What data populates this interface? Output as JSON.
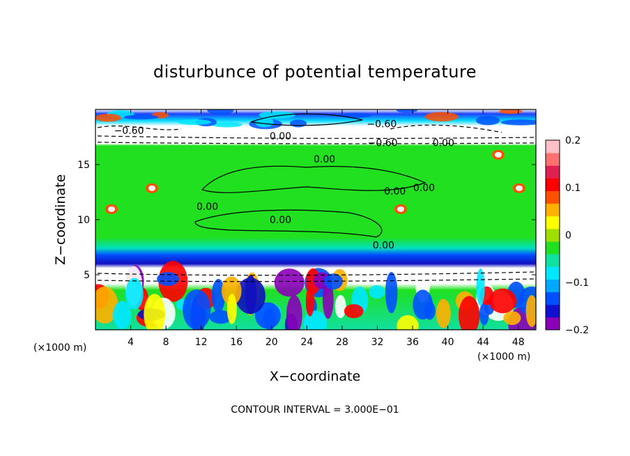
{
  "chart_data": {
    "type": "heatmap",
    "title": "disturbunce of potential temperature",
    "xlabel": "X−coordinate",
    "ylabel": "Z−coordinate",
    "x_unit": "(×1000 m)",
    "z_unit": "(×1000 m)",
    "xlim": [
      0,
      50
    ],
    "ylim": [
      0,
      20
    ],
    "x_ticks": [
      4,
      8,
      12,
      16,
      20,
      24,
      28,
      32,
      36,
      40,
      44,
      48
    ],
    "x_tick_labels": [
      "4",
      "8",
      "12",
      "16",
      "20",
      "24",
      "28",
      "32",
      "36",
      "40",
      "44",
      "48"
    ],
    "y_ticks": [
      5,
      10,
      15
    ],
    "y_tick_labels": [
      "5",
      "10",
      "15"
    ],
    "colorbar": {
      "min": -0.2,
      "max": 0.2,
      "ticks": [
        0.2,
        0.1,
        0,
        -0.1,
        -0.2
      ],
      "tick_labels": [
        "0.2",
        "0.1",
        "0",
        "−0.1",
        "−0.2"
      ],
      "colors": [
        "#8a00b8",
        "#1010d0",
        "#0050ff",
        "#00a8ff",
        "#00e8ff",
        "#10e0a0",
        "#20e020",
        "#a0e000",
        "#ffff00",
        "#ffb000",
        "#ff5000",
        "#ff0000",
        "#e02050",
        "#ff7070",
        "#ffc0c8"
      ]
    },
    "contour_labels": [
      {
        "text": "−0.60",
        "x": 3.8,
        "z": 18.1
      },
      {
        "text": "−0.60",
        "x": 32.5,
        "z": 18.7
      },
      {
        "text": "0.00",
        "x": 21.0,
        "z": 17.6
      },
      {
        "text": "−0.60",
        "x": 32.6,
        "z": 17.0
      },
      {
        "text": "0.00",
        "x": 39.5,
        "z": 17.0
      },
      {
        "text": "0.00",
        "x": 26.0,
        "z": 15.5
      },
      {
        "text": "0.00",
        "x": 34.0,
        "z": 12.6
      },
      {
        "text": "0.00",
        "x": 37.3,
        "z": 12.9
      },
      {
        "text": "0.00",
        "x": 12.7,
        "z": 11.2
      },
      {
        "text": "0.00",
        "x": 21.0,
        "z": 10.0
      },
      {
        "text": "0.00",
        "x": 32.7,
        "z": 7.7
      }
    ],
    "contour_interval_text": "CONTOUR INTERVAL = 3.000E−01"
  }
}
